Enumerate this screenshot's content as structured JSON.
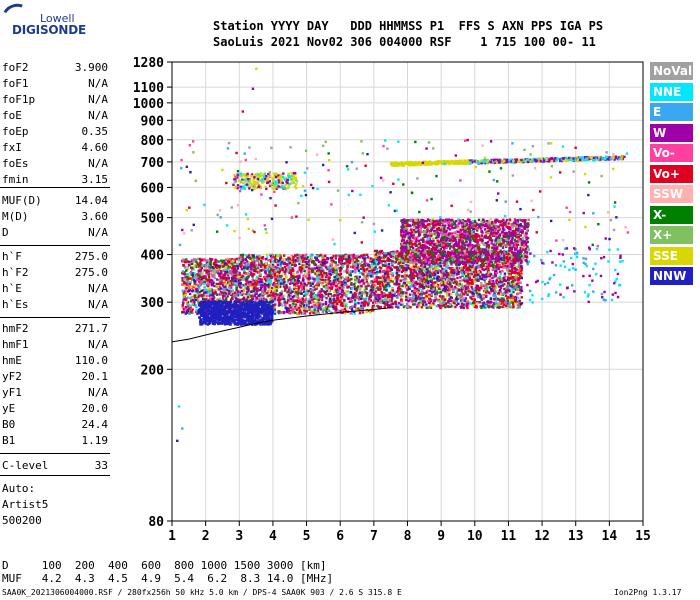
{
  "logo": {
    "line1": "Lowell",
    "line2": "DIGISONDE"
  },
  "header": {
    "line1": "Station YYYY DAY   DDD HHMMSS P1  FFS S AXN PPS IGA PS",
    "line2": "SaoLuis 2021 Nov02 306 004000 RSF    1 715 100 00- 11"
  },
  "params": [
    {
      "label": "foF2",
      "value": "3.900"
    },
    {
      "label": "foF1",
      "value": "N/A"
    },
    {
      "label": "foF1p",
      "value": "N/A"
    },
    {
      "label": "foE",
      "value": "N/A"
    },
    {
      "label": "foEp",
      "value": "0.35"
    },
    {
      "label": "fxI",
      "value": "4.60"
    },
    {
      "label": "foEs",
      "value": "N/A"
    },
    {
      "label": "fmin",
      "value": "3.15"
    },
    {
      "label": "MUF(D)",
      "value": "14.04"
    },
    {
      "label": "M(D)",
      "value": "3.60"
    },
    {
      "label": "D",
      "value": "N/A"
    },
    {
      "label": "h`F",
      "value": "275.0"
    },
    {
      "label": "h`F2",
      "value": "275.0"
    },
    {
      "label": "h`E",
      "value": "N/A"
    },
    {
      "label": "h`Es",
      "value": "N/A"
    },
    {
      "label": "hmF2",
      "value": "271.7"
    },
    {
      "label": "hmF1",
      "value": "N/A"
    },
    {
      "label": "hmE",
      "value": "110.0"
    },
    {
      "label": "yF2",
      "value": "20.1"
    },
    {
      "label": "yF1",
      "value": "N/A"
    },
    {
      "label": "yE",
      "value": "20.0"
    },
    {
      "label": "B0",
      "value": "24.4"
    },
    {
      "label": "B1",
      "value": "1.19"
    },
    {
      "label": "C-level",
      "value": "33"
    }
  ],
  "autoscaling": {
    "line1": "Auto:",
    "line2": "Artist5",
    "line3": "500200"
  },
  "legend": [
    {
      "label": "NoVal",
      "color": "#a0a0a0",
      "text": "#ffffff"
    },
    {
      "label": "NNE",
      "color": "#00e8ff",
      "text": "#ffffff"
    },
    {
      "label": "E",
      "color": "#3aa8f0",
      "text": "#ffffff"
    },
    {
      "label": "W",
      "color": "#a000a8",
      "text": "#ffffff"
    },
    {
      "label": "Vo-",
      "color": "#ff40a0",
      "text": "#ffffff"
    },
    {
      "label": "Vo+",
      "color": "#e00020",
      "text": "#ffffff"
    },
    {
      "label": "SSW",
      "color": "#ffb0b0",
      "text": "#ffffff"
    },
    {
      "label": "X-",
      "color": "#008000",
      "text": "#ffffff"
    },
    {
      "label": "X+",
      "color": "#80c060",
      "text": "#ffffff"
    },
    {
      "label": "SSE",
      "color": "#d8d800",
      "text": "#ffffff"
    },
    {
      "label": "NNW",
      "color": "#2020c0",
      "text": "#ffffff"
    }
  ],
  "chart_data": {
    "type": "scatter",
    "title": "",
    "xlabel": "",
    "ylabel": "",
    "xlim": [
      1,
      15
    ],
    "ylim": [
      80,
      1280
    ],
    "yscale": "log",
    "x_ticks": [
      "1",
      "2",
      "3",
      "4",
      "5",
      "6",
      "7",
      "8",
      "9",
      "10",
      "11",
      "12",
      "13",
      "14",
      "15"
    ],
    "y_ticks": [
      {
        "value": 80,
        "label": "80"
      },
      {
        "value": 200,
        "label": "200"
      },
      {
        "value": 300,
        "label": "300"
      },
      {
        "value": 400,
        "label": "400"
      },
      {
        "value": 500,
        "label": "500"
      },
      {
        "value": 600,
        "label": "600"
      },
      {
        "value": 700,
        "label": "700"
      },
      {
        "value": 800,
        "label": "800"
      },
      {
        "value": 900,
        "label": "900"
      },
      {
        "value": 1000,
        "label": "1000"
      },
      {
        "value": 1100,
        "label": "1100"
      },
      {
        "value": 1280,
        "label": "1280"
      }
    ],
    "grid": true,
    "trace_regions": [
      {
        "name": "F-layer echoes",
        "x": [
          1.3,
          11.4
        ],
        "height": [
          280,
          400
        ]
      },
      {
        "name": "Spread F",
        "x": [
          7.8,
          11.6
        ],
        "height": [
          380,
          500
        ]
      },
      {
        "name": "Second-hop trace",
        "x": [
          7.5,
          14.4
        ],
        "height": [
          680,
          720
        ]
      },
      {
        "name": "Low-frequency echoes",
        "x": [
          2.8,
          4.7
        ],
        "height": [
          590,
          660
        ]
      }
    ],
    "profile": {
      "x": [
        1.0,
        1.5,
        2.0,
        2.5,
        3.0,
        3.5,
        4.0,
        5.0,
        6.0,
        7.0,
        7.5
      ],
      "y": [
        236,
        240,
        246,
        252,
        258,
        264,
        269,
        276,
        282,
        287,
        290
      ]
    }
  },
  "bottom": {
    "d_row": "D     100  200  400  600  800 1000 1500 3000 [km]",
    "muf_row": "MUF   4.2  4.3  4.5  4.9  5.4  6.2  8.3 14.0 [MHz]"
  },
  "footer": {
    "left": "SAA0K_2021306004000.RSF / 280fx256h 50 kHz 5.0 km / DPS-4 SAA0K 903 / 2.6 S 315.8 E",
    "right": "Ion2Png 1.3.17"
  }
}
